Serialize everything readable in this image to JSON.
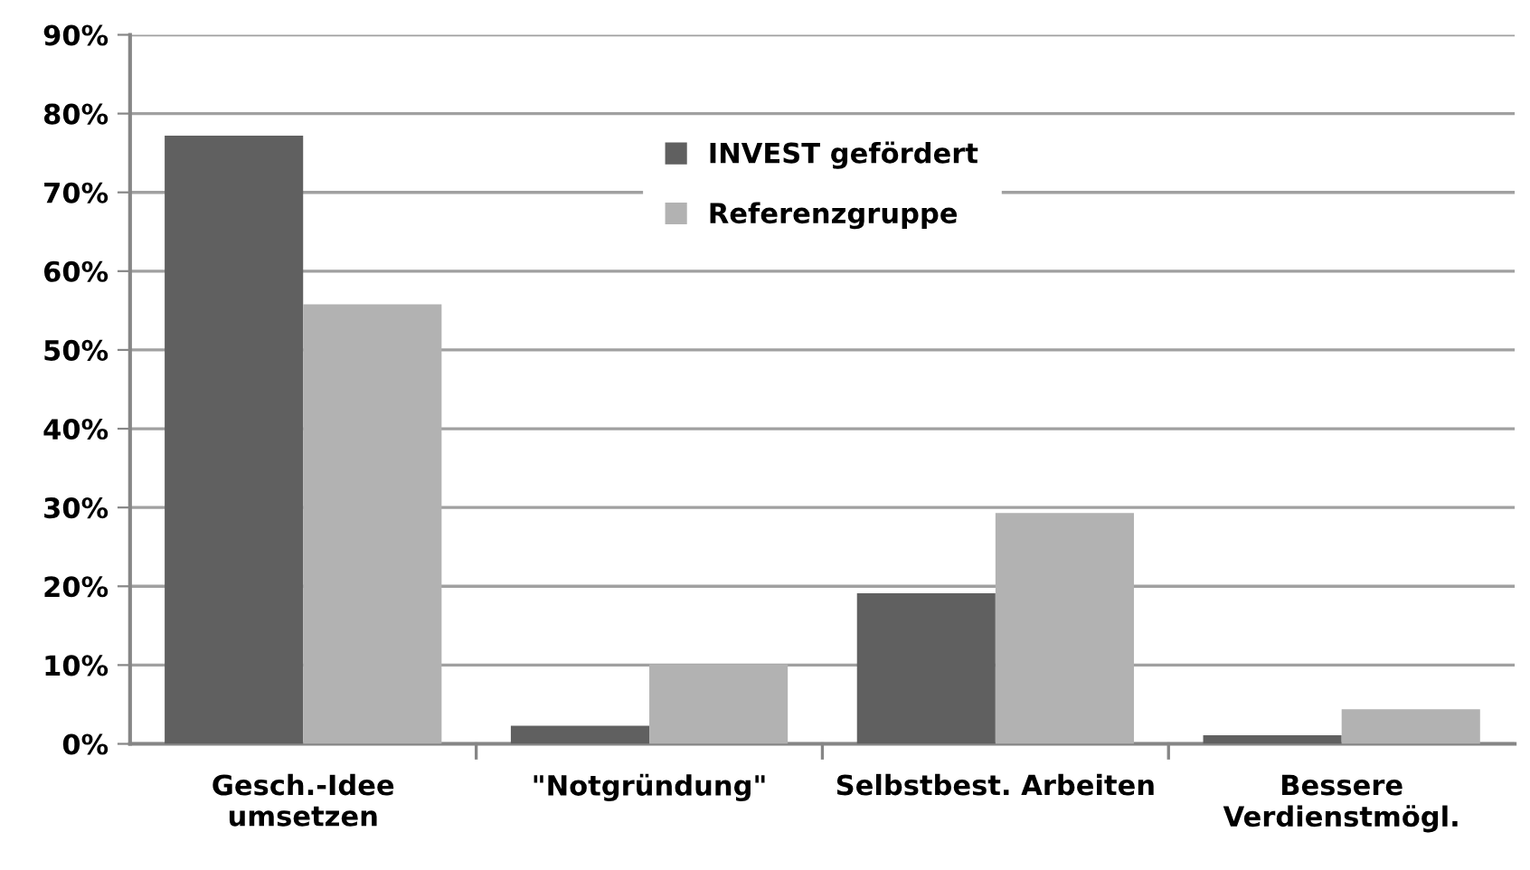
{
  "chart_data": {
    "type": "bar",
    "categories": [
      "Gesch.-Idee\numsetzen",
      "\"Notgründung\"",
      "Selbstbest. Arbeiten",
      "Bessere\nVerdienstmögl."
    ],
    "series": [
      {
        "name": "INVEST gefördert",
        "color": "#606060",
        "values": [
          77.2,
          2.3,
          19.1,
          1.1
        ]
      },
      {
        "name": "Referenzgruppe",
        "color": "#b2b2b2",
        "values": [
          55.8,
          10.1,
          29.3,
          4.4
        ]
      }
    ],
    "ylim": [
      0,
      90
    ],
    "yticks": [
      {
        "value": 0,
        "label": "0%"
      },
      {
        "value": 10,
        "label": "10%"
      },
      {
        "value": 20,
        "label": "20%"
      },
      {
        "value": 30,
        "label": "30%"
      },
      {
        "value": 40,
        "label": "40%"
      },
      {
        "value": 50,
        "label": "50%"
      },
      {
        "value": 60,
        "label": "60%"
      },
      {
        "value": 70,
        "label": "70%"
      },
      {
        "value": 80,
        "label": "80%"
      },
      {
        "value": 90,
        "label": "90%"
      }
    ],
    "grid": "y",
    "legend": "top"
  }
}
